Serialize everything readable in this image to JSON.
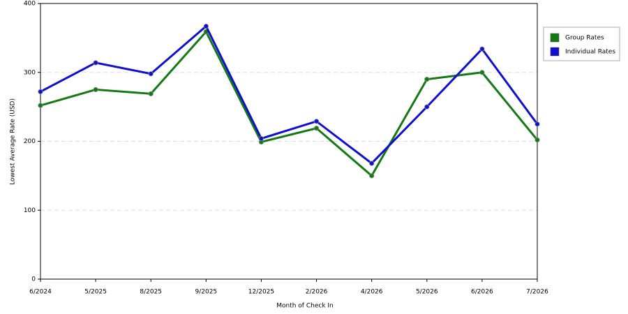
{
  "chart_data": {
    "type": "line",
    "x_label": "Month of Check In",
    "y_label": "Lowest Average Rate (USD)",
    "categories": [
      "6/2024",
      "5/2025",
      "8/2025",
      "9/2025",
      "12/2025",
      "2/2026",
      "4/2026",
      "5/2026",
      "6/2026",
      "7/2026"
    ],
    "series": [
      {
        "name": "Group Rates",
        "color": "#137a13",
        "values": [
          252,
          275,
          269,
          359,
          199,
          219,
          150,
          290,
          300,
          202
        ]
      },
      {
        "name": "Individual Rates",
        "color": "#1010cc",
        "values": [
          272,
          314,
          298,
          367,
          204,
          229,
          168,
          250,
          334,
          225
        ]
      }
    ],
    "ylim": [
      0,
      400
    ],
    "yticks": [
      0,
      100,
      200,
      300,
      400
    ],
    "grid": true,
    "legend": "right"
  }
}
